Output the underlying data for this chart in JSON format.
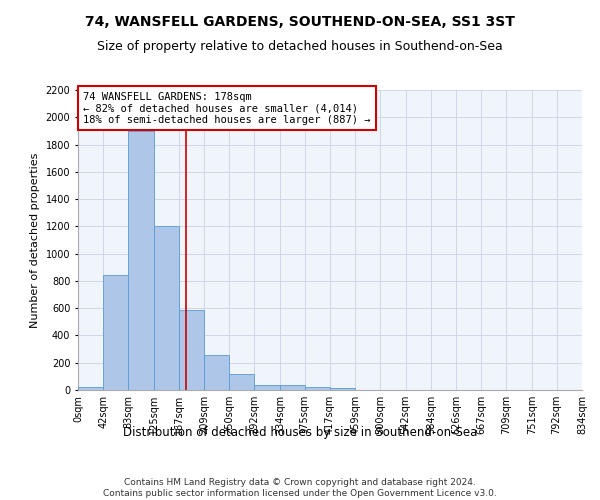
{
  "title": "74, WANSFELL GARDENS, SOUTHEND-ON-SEA, SS1 3ST",
  "subtitle": "Size of property relative to detached houses in Southend-on-Sea",
  "xlabel": "Distribution of detached houses by size in Southend-on-Sea",
  "ylabel": "Number of detached properties",
  "bin_edges": [
    0,
    42,
    83,
    125,
    167,
    209,
    250,
    292,
    334,
    375,
    417,
    459,
    500,
    542,
    584,
    626,
    667,
    709,
    751,
    792,
    834
  ],
  "bin_labels": [
    "0sqm",
    "42sqm",
    "83sqm",
    "125sqm",
    "167sqm",
    "209sqm",
    "250sqm",
    "292sqm",
    "334sqm",
    "375sqm",
    "417sqm",
    "459sqm",
    "500sqm",
    "542sqm",
    "584sqm",
    "626sqm",
    "667sqm",
    "709sqm",
    "751sqm",
    "792sqm",
    "834sqm"
  ],
  "bar_heights": [
    25,
    840,
    1900,
    1200,
    590,
    255,
    120,
    40,
    35,
    25,
    15,
    0,
    0,
    0,
    0,
    0,
    0,
    0,
    0,
    0
  ],
  "bar_color": "#aec6e8",
  "bar_edge_color": "#5b9bd5",
  "grid_color": "#d0d8e8",
  "property_size": 178,
  "vline_color": "#cc0000",
  "annotation_line1": "74 WANSFELL GARDENS: 178sqm",
  "annotation_line2": "← 82% of detached houses are smaller (4,014)",
  "annotation_line3": "18% of semi-detached houses are larger (887) →",
  "annotation_box_color": "#ffffff",
  "annotation_box_edge_color": "#cc0000",
  "ylim": [
    0,
    2200
  ],
  "yticks": [
    0,
    200,
    400,
    600,
    800,
    1000,
    1200,
    1400,
    1600,
    1800,
    2000,
    2200
  ],
  "footer_line1": "Contains HM Land Registry data © Crown copyright and database right 2024.",
  "footer_line2": "Contains public sector information licensed under the Open Government Licence v3.0.",
  "title_fontsize": 10,
  "subtitle_fontsize": 9,
  "xlabel_fontsize": 8.5,
  "ylabel_fontsize": 8,
  "tick_fontsize": 7,
  "annotation_fontsize": 7.5,
  "footer_fontsize": 6.5,
  "bg_color": "#f0f4fb"
}
